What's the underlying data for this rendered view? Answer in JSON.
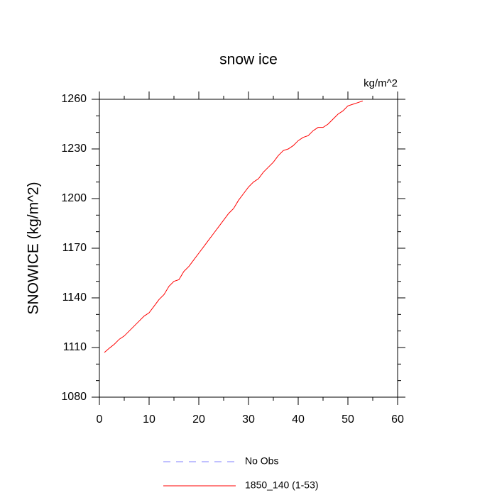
{
  "chart_data": {
    "type": "line",
    "title": "snow ice",
    "units_label": "kg/m^2",
    "y_label": "SNOWICE  (kg/m^2)",
    "x": [
      1,
      2,
      3,
      4,
      5,
      6,
      7,
      8,
      9,
      10,
      11,
      12,
      13,
      14,
      15,
      16,
      17,
      18,
      19,
      20,
      21,
      22,
      23,
      24,
      25,
      26,
      27,
      28,
      29,
      30,
      31,
      32,
      33,
      34,
      35,
      36,
      37,
      38,
      39,
      40,
      41,
      42,
      43,
      44,
      45,
      46,
      47,
      48,
      49,
      50,
      51,
      52,
      53
    ],
    "series": [
      {
        "name": "No Obs",
        "color": "#8080ff",
        "dashed": true,
        "values": [
          null,
          null,
          null,
          null,
          null,
          null,
          null,
          null,
          null,
          null,
          null,
          null,
          null,
          null,
          null,
          null,
          null,
          null,
          null,
          null,
          null,
          null,
          null,
          null,
          null,
          null,
          null,
          null,
          null,
          null,
          null,
          null,
          null,
          null,
          null,
          null,
          null,
          null,
          null,
          null,
          null,
          null,
          null,
          null,
          null,
          null,
          null,
          null,
          null,
          null,
          null,
          null,
          null
        ]
      },
      {
        "name": "1850_140 (1-53)",
        "color": "#ff0000",
        "dashed": false,
        "values": [
          1107,
          1109.6,
          1112,
          1115,
          1117,
          1120,
          1123,
          1126,
          1129,
          1131,
          1135,
          1139,
          1142,
          1147,
          1150,
          1151,
          1156,
          1159,
          1163,
          1167,
          1171,
          1175,
          1179,
          1183,
          1187,
          1191,
          1194,
          1199,
          1203,
          1207,
          1210,
          1212,
          1216,
          1219,
          1222,
          1226,
          1229,
          1230,
          1232,
          1235,
          1237,
          1238,
          1241,
          1243,
          1243,
          1245,
          1248,
          1251,
          1253,
          1256,
          1257,
          1258,
          1259
        ]
      }
    ],
    "xlim": [
      0,
      60
    ],
    "xticks": [
      0,
      10,
      20,
      30,
      40,
      50,
      60
    ],
    "xminorticks": [
      5,
      15,
      25,
      35,
      45,
      55
    ],
    "ylim": [
      1080,
      1260
    ],
    "yticks": [
      1080,
      1110,
      1140,
      1170,
      1200,
      1230,
      1260
    ],
    "yminorticks": [
      1090,
      1100,
      1120,
      1130,
      1150,
      1160,
      1180,
      1190,
      1210,
      1220,
      1240,
      1250
    ]
  }
}
